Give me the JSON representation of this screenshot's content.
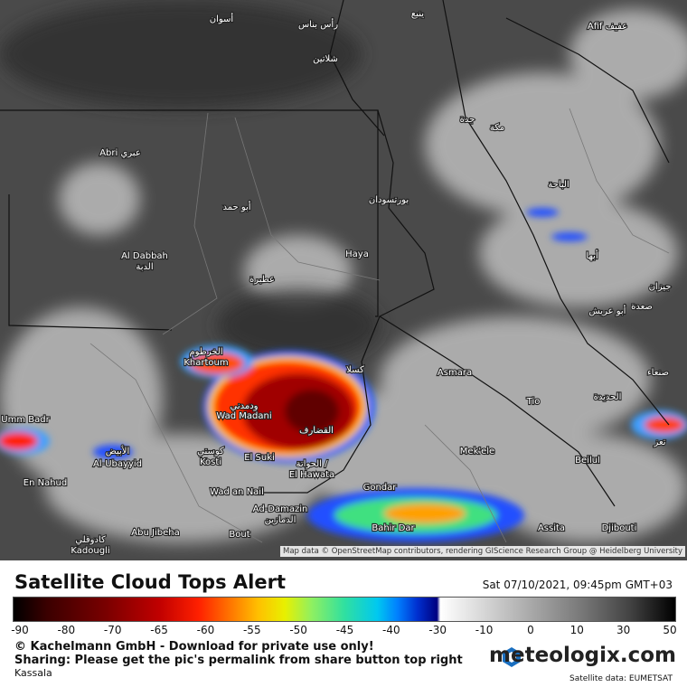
{
  "map": {
    "labels": [
      "أسوان",
      "رأس بناس",
      "ينبع",
      "شلاتين",
      "Afif عفيف",
      "Abri عبري",
      "أبو حمد",
      "بورتسودان",
      "جدة",
      "مكة",
      "الباحة",
      "Al Dabbah",
      "الدبة",
      "Haya",
      "عطبرة",
      "أبها",
      "جيزان",
      "أبو عريش",
      "صعدة",
      "الخرطوم",
      "Khartoum",
      "كسلا",
      "Asmara",
      "صنعاء",
      "ودمدني",
      "Wad Madani",
      "القضارف",
      "Tio",
      "الحديدة",
      "Umm Badr",
      "Mek'ele",
      "كوستي",
      "Kosti",
      "El Suki",
      "الأبيض",
      "Al-Ubayyid",
      "الحواتة /",
      "El Hawata",
      "Beilul",
      "En Nahud",
      "Gondar",
      "Wad an Nail",
      "Ad-Damazin",
      "الدمازين",
      "Abu Jibeha",
      "Bahir Dar",
      "Assita",
      "Djibouti",
      "Bout",
      "كادوقلي",
      "Kadougli",
      "تعز"
    ],
    "attribution": "Map data © OpenStreetMap contributors, rendering GIScience Research Group @ Heidelberg University"
  },
  "legend": {
    "title": "Satellite Cloud Tops Alert",
    "timestamp": "Sat 07/10/2021, 09:45pm GMT+03",
    "scale_ticks": [
      -90,
      -80,
      -70,
      -65,
      -60,
      -55,
      -50,
      -45,
      -40,
      -30,
      -10,
      0,
      10,
      30,
      50
    ],
    "copyright": "© Kachelmann GmbH - Download for private use only!",
    "sharing": "Sharing: Please get the pic's permalink from share button top right",
    "location": "Kassala",
    "brand": "meteologix.com",
    "source": "Satellite data: EUMETSAT"
  }
}
